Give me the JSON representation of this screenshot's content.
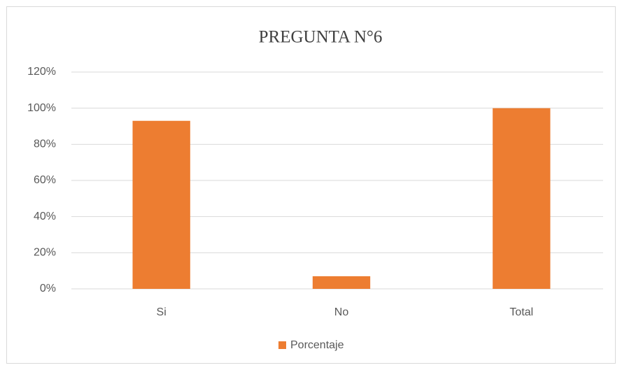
{
  "chart_data": {
    "type": "bar",
    "title": "PREGUNTA N°6",
    "categories": [
      "Si",
      "No",
      "Total"
    ],
    "series": [
      {
        "name": "Porcentaje",
        "color": "#ed7d31",
        "values": [
          93,
          7,
          100
        ]
      }
    ],
    "ylim": [
      0,
      120
    ],
    "yticks": [
      {
        "value": 0,
        "label": "0%"
      },
      {
        "value": 20,
        "label": "20%"
      },
      {
        "value": 40,
        "label": "40%"
      },
      {
        "value": 60,
        "label": "60%"
      },
      {
        "value": 80,
        "label": "80%"
      },
      {
        "value": 100,
        "label": "100%"
      },
      {
        "value": 120,
        "label": "120%"
      }
    ],
    "grid": true,
    "legend": "bottom"
  }
}
